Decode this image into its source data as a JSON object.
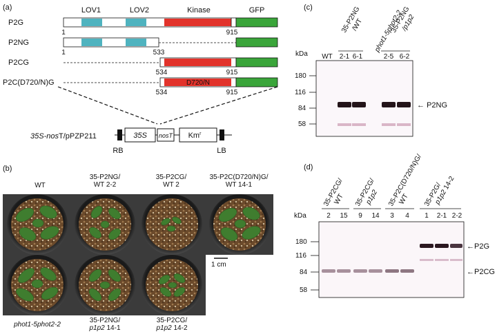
{
  "panel_a": {
    "letter": "(a)",
    "domains": {
      "lov1": "LOV1",
      "lov2": "LOV2",
      "kinase": "Kinase",
      "gfp": "GFP"
    },
    "constructs": [
      {
        "name": "P2G",
        "start": "1",
        "end": "915"
      },
      {
        "name": "P2NG",
        "start": "1",
        "end": "533"
      },
      {
        "name": "P2CG",
        "start": "534",
        "end": "915"
      },
      {
        "name": "P2C(D720/N)G",
        "start": "534",
        "end": "915",
        "mutation": "D720/N"
      }
    ],
    "vector": {
      "name_italic": "35S-nos",
      "name_rest": "T/pPZP211",
      "promoter": "35S",
      "terminator": "nosT",
      "marker": "Km",
      "marker_sup": "r",
      "rb": "RB",
      "lb": "LB"
    }
  },
  "panel_b": {
    "letter": "(b)",
    "scale_bar": "1 cm",
    "top_labels": [
      "WT",
      "35-P2NG/\nWT 2-2",
      "35-P2CG/\nWT 2",
      "35-P2C(D720/N)G/\nWT 14-1"
    ],
    "bottom_labels": [
      "phot1-5phot2-2",
      "35-P2NG/\np1p2 14-1",
      "35-P2CG/\np1p2 14-2"
    ]
  },
  "panel_c": {
    "letter": "(c)",
    "kda": "kDa",
    "lanes": [
      "WT",
      "2-1",
      "6-1",
      "2-5",
      "6-2"
    ],
    "group_headers": [
      "35-P2NG\n/WT",
      "phot1-5phot2-2",
      "35-P2NG\n/p1p2"
    ],
    "markers": [
      "180",
      "116",
      "84",
      "58"
    ],
    "band_label": "P2NG"
  },
  "panel_d": {
    "letter": "(d)",
    "kda": "kDa",
    "lanes": [
      "2",
      "15",
      "9",
      "14",
      "3",
      "4",
      "1",
      "2-1",
      "2-2"
    ],
    "group_headers": [
      "35-P2CG/\nWT",
      "35-P2CG/\np1p2",
      "35-P2C(D720/N)G/\nWT",
      "35-P2G/\np1p2 14-2"
    ],
    "markers": [
      "180",
      "116",
      "84",
      "58"
    ],
    "band_labels": [
      "P2G",
      "P2CG"
    ]
  }
}
